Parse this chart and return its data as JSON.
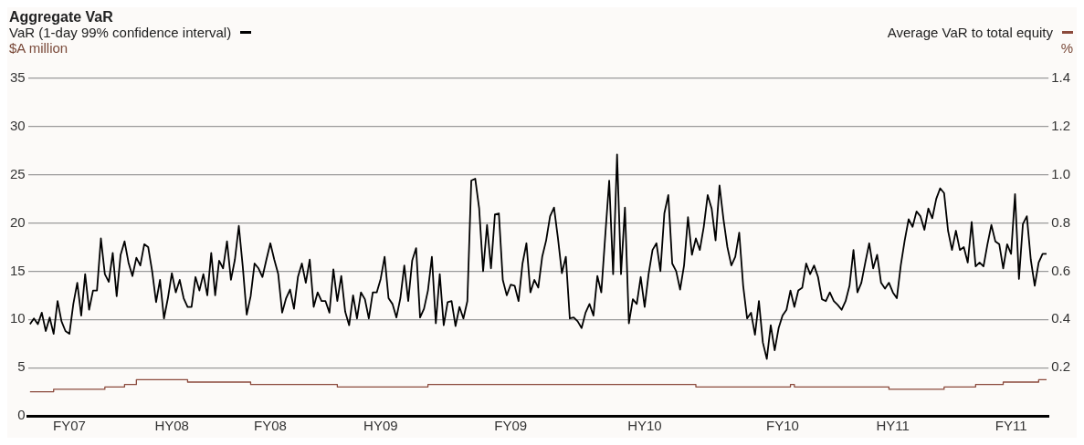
{
  "chart_data": {
    "type": "line",
    "title": "Aggregate VaR",
    "ylabel": "$A million",
    "y2label": "%",
    "legend": "top",
    "grid": "y",
    "categories": [
      null,
      null,
      null,
      null,
      null,
      null,
      null,
      null,
      null,
      null,
      "FY07",
      null,
      null,
      null,
      null,
      null,
      null,
      null,
      null,
      null,
      null,
      null,
      null,
      null,
      null,
      null,
      null,
      null,
      null,
      null,
      null,
      null,
      null,
      null,
      null,
      null,
      "HY08",
      null,
      null,
      null,
      null,
      null,
      null,
      null,
      null,
      null,
      null,
      null,
      null,
      null,
      null,
      null,
      null,
      null,
      null,
      null,
      null,
      null,
      null,
      null,
      null,
      "FY08",
      null,
      null,
      null,
      null,
      null,
      null,
      null,
      null,
      null,
      null,
      null,
      null,
      null,
      null,
      null,
      null,
      null,
      null,
      null,
      null,
      null,
      null,
      null,
      null,
      null,
      null,
      null,
      "HY09",
      null,
      null,
      null,
      null,
      null,
      null,
      null,
      null,
      null,
      null,
      null,
      null,
      null,
      null,
      null,
      null,
      null,
      null,
      null,
      null,
      null,
      null,
      null,
      null,
      null,
      null,
      null,
      null,
      null,
      null,
      null,
      null,
      "FY09",
      null,
      null,
      null,
      null,
      null,
      null,
      null,
      null,
      null,
      null,
      null,
      null,
      null,
      null,
      null,
      null,
      null,
      null,
      null,
      null,
      null,
      null,
      null,
      null,
      null,
      null,
      null,
      null,
      null,
      null,
      null,
      null,
      null,
      "HY10",
      null,
      null,
      null,
      null,
      null,
      null,
      null,
      null,
      null,
      null,
      null,
      null,
      null,
      null,
      null,
      null,
      null,
      null,
      null,
      null,
      null,
      null,
      null,
      null,
      null,
      null,
      null,
      null,
      null,
      null,
      null,
      null,
      null,
      null,
      "FY10",
      null,
      null,
      null,
      null,
      null,
      null,
      null,
      null,
      null,
      null,
      null,
      null,
      null,
      null,
      null,
      null,
      null,
      null,
      null,
      null,
      null,
      null,
      null,
      null,
      null,
      null,
      null,
      "HY11",
      null,
      null,
      null,
      null,
      null,
      null,
      null,
      null,
      null,
      null,
      null,
      null,
      null,
      null,
      null,
      null,
      null,
      null,
      null,
      null,
      null,
      null,
      null,
      null,
      null,
      null,
      null,
      null,
      null,
      "FY11",
      null,
      null,
      null,
      null,
      null,
      null,
      null,
      null,
      null
    ],
    "ylim": [
      0,
      35
    ],
    "yticks": [
      0,
      5,
      10,
      15,
      20,
      25,
      30,
      35
    ],
    "y2lim": [
      0,
      1.4
    ],
    "y2ticks": [
      0.2,
      0.4,
      0.6,
      0.8,
      {
        "value": 1,
        "label": "1.0"
      },
      1.2,
      1.4
    ],
    "series": [
      {
        "name": "VaR (1-day 99% confidence interval)",
        "color": "#000000",
        "values": [
          9.5,
          10.1,
          9.5,
          10.7,
          8.8,
          10.2,
          8.5,
          11.9,
          9.8,
          8.8,
          8.5,
          11.6,
          13.8,
          10.4,
          14.7,
          11,
          13,
          13,
          18.4,
          14.7,
          13.9,
          16.9,
          12.4,
          16.7,
          18.1,
          15.9,
          14.5,
          16.4,
          15.6,
          17.8,
          17.5,
          15,
          11.8,
          14.1,
          10.1,
          12.2,
          14.8,
          12.8,
          14.1,
          12.2,
          11.3,
          11.3,
          14.4,
          13,
          14.7,
          12.5,
          16.9,
          12.5,
          16.1,
          15.3,
          18.1,
          14.1,
          16.2,
          19.7,
          15.5,
          10.5,
          12.4,
          15.8,
          15.3,
          14.4,
          16.2,
          17.9,
          16.2,
          14.7,
          10.7,
          12.2,
          13.1,
          11.1,
          14.4,
          15.8,
          13.8,
          16.2,
          11.3,
          12.8,
          11.9,
          11.9,
          10.7,
          15.2,
          11.9,
          14.5,
          10.8,
          9.4,
          12.5,
          10.1,
          12.8,
          12.1,
          10.1,
          12.8,
          12.8,
          14.2,
          16.5,
          12.2,
          11.6,
          10.2,
          12.2,
          15.6,
          11.9,
          16.1,
          17.4,
          10.2,
          11.1,
          13,
          16.5,
          9.6,
          14.7,
          9.4,
          11.8,
          11.9,
          9.3,
          11.3,
          10.1,
          11.9,
          24.4,
          24.6,
          21.5,
          15,
          19.8,
          15.3,
          20.9,
          21,
          14.1,
          12.5,
          13.6,
          13.5,
          11.9,
          15.8,
          17.9,
          12.8,
          14.1,
          13.3,
          16.5,
          18.2,
          20.7,
          21.6,
          18.4,
          14.8,
          16.5,
          10.1,
          10.2,
          9.8,
          9.1,
          10.7,
          11.6,
          10.4,
          14.5,
          12.8,
          18.7,
          24.4,
          14.7,
          27.1,
          14.7,
          21.6,
          9.6,
          12.1,
          11.6,
          14.4,
          11.3,
          14.7,
          17.2,
          17.9,
          15,
          21,
          22.9,
          15.8,
          15,
          13.1,
          15.6,
          20.6,
          16.7,
          18.4,
          17.2,
          19.6,
          22.9,
          21.5,
          18.2,
          23.9,
          20.4,
          17.5,
          15.6,
          16.5,
          19,
          13.5,
          10.1,
          10.7,
          8.4,
          11.9,
          7.6,
          5.9,
          9.4,
          6.8,
          9.1,
          10.4,
          11,
          13,
          11.3,
          13,
          13.3,
          15.8,
          14.7,
          15.6,
          14.4,
          12.1,
          11.9,
          12.8,
          11.9,
          11.5,
          11,
          11.9,
          13.5,
          17.2,
          12.8,
          13.8,
          15.9,
          17.9,
          15.3,
          16.7,
          13.8,
          13.2,
          13.8,
          12.8,
          12.2,
          15.6,
          18.2,
          20.4,
          19.6,
          21.2,
          20.7,
          19.3,
          21.5,
          20.5,
          22.5,
          23.6,
          23.1,
          19.2,
          17.2,
          19.2,
          17.2,
          17.5,
          15.9,
          20.1,
          15.5,
          15.9,
          15.5,
          17.8,
          19.8,
          18.1,
          17.8,
          15.3,
          17.8,
          16.8,
          23,
          14.2,
          19.9,
          20.7,
          16.2,
          13.5,
          15.9,
          16.8,
          16.8
        ]
      },
      {
        "name": "Average VaR to total equity",
        "color": "#8b4a3c",
        "type": "step",
        "axis": "y2",
        "values": [
          0.1,
          0.1,
          0.1,
          0.1,
          0.1,
          0.1,
          0.1,
          0.11,
          0.11,
          0.11,
          0.11,
          0.11,
          0.11,
          0.11,
          0.11,
          0.11,
          0.11,
          0.11,
          0.11,
          0.11,
          0.12,
          0.12,
          0.12,
          0.12,
          0.12,
          0.13,
          0.13,
          0.13,
          0.15,
          0.15,
          0.15,
          0.15,
          0.15,
          0.15,
          0.15,
          0.15,
          0.15,
          0.15,
          0.15,
          0.15,
          0.15,
          0.14,
          0.14,
          0.14,
          0.14,
          0.14,
          0.14,
          0.14,
          0.14,
          0.14,
          0.14,
          0.14,
          0.14,
          0.14,
          0.14,
          0.14,
          0.14,
          0.13,
          0.13,
          0.13,
          0.13,
          0.13,
          0.13,
          0.13,
          0.13,
          0.13,
          0.13,
          0.13,
          0.13,
          0.13,
          0.13,
          0.13,
          0.13,
          0.13,
          0.13,
          0.13,
          0.13,
          0.13,
          0.13,
          0.12,
          0.12,
          0.12,
          0.12,
          0.12,
          0.12,
          0.12,
          0.12,
          0.12,
          0.12,
          0.12,
          0.12,
          0.12,
          0.12,
          0.12,
          0.12,
          0.12,
          0.12,
          0.12,
          0.12,
          0.12,
          0.12,
          0.12,
          0.13,
          0.13,
          0.13,
          0.13,
          0.13,
          0.13,
          0.13,
          0.13,
          0.13,
          0.13,
          0.13,
          0.13,
          0.13,
          0.13,
          0.13,
          0.13,
          0.13,
          0.13,
          0.13,
          0.13,
          0.13,
          0.13,
          0.13,
          0.13,
          0.13,
          0.13,
          0.13,
          0.13,
          0.13,
          0.13,
          0.13,
          0.13,
          0.13,
          0.13,
          0.13,
          0.13,
          0.13,
          0.13,
          0.13,
          0.13,
          0.13,
          0.13,
          0.13,
          0.13,
          0.13,
          0.13,
          0.13,
          0.13,
          0.13,
          0.13,
          0.13,
          0.13,
          0.13,
          0.13,
          0.13,
          0.13,
          0.13,
          0.13,
          0.13,
          0.13,
          0.13,
          0.13,
          0.13,
          0.13,
          0.13,
          0.13,
          0.13,
          0.13,
          0.12,
          0.12,
          0.12,
          0.12,
          0.12,
          0.12,
          0.12,
          0.12,
          0.12,
          0.12,
          0.12,
          0.12,
          0.12,
          0.12,
          0.12,
          0.12,
          0.12,
          0.12,
          0.12,
          0.12,
          0.12,
          0.12,
          0.12,
          0.12,
          0.13,
          0.12,
          0.12,
          0.12,
          0.12,
          0.12,
          0.12,
          0.12,
          0.12,
          0.12,
          0.12,
          0.12,
          0.12,
          0.12,
          0.12,
          0.12,
          0.12,
          0.12,
          0.12,
          0.12,
          0.12,
          0.12,
          0.12,
          0.12,
          0.12,
          0.11,
          0.11,
          0.11,
          0.11,
          0.11,
          0.11,
          0.11,
          0.11,
          0.11,
          0.11,
          0.11,
          0.11,
          0.11,
          0.11,
          0.12,
          0.12,
          0.12,
          0.12,
          0.12,
          0.12,
          0.12,
          0.12,
          0.13,
          0.13,
          0.13,
          0.13,
          0.13,
          0.13,
          0.13,
          0.14,
          0.14,
          0.14,
          0.14,
          0.14,
          0.14,
          0.14,
          0.14,
          0.14,
          0.15,
          0.15
        ]
      }
    ]
  }
}
